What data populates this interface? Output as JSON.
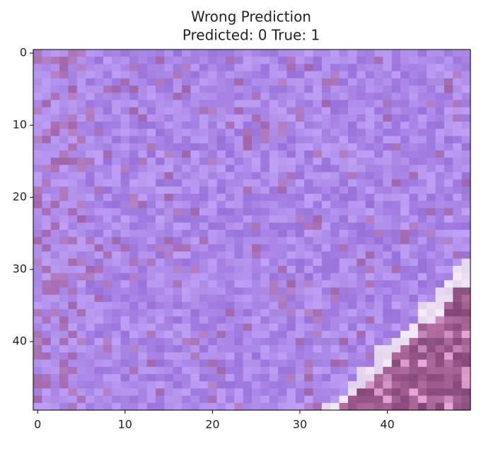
{
  "chart_data": {
    "type": "image",
    "title": "Wrong Prediction",
    "subtitle": "Predicted: 0 True: 1",
    "xlim": [
      -0.5,
      49.5
    ],
    "ylim": [
      49.5,
      -0.5
    ],
    "xticks": [
      0,
      10,
      20,
      30,
      40
    ],
    "yticks": [
      0,
      10,
      20,
      30,
      40
    ],
    "grid": false
  }
}
